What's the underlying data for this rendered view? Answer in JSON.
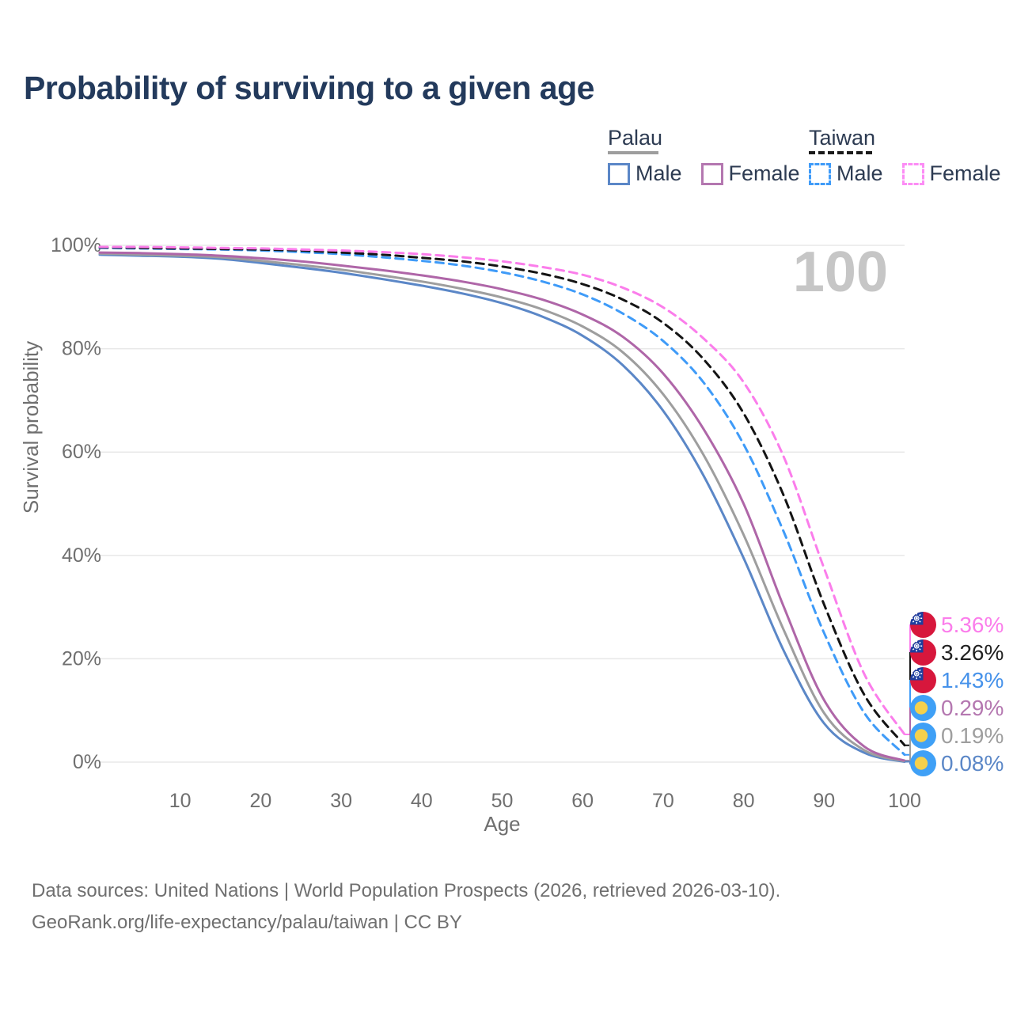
{
  "title": "Probability of surviving to a given age",
  "legend": {
    "groups": [
      {
        "label": "Palau",
        "line_style": "solid",
        "line_color": "#9e9e9e",
        "items": [
          {
            "label": "Male",
            "box_color": "#5b87c7",
            "box_style": "solid"
          },
          {
            "label": "Female",
            "box_color": "#b477b0",
            "box_style": "solid"
          }
        ]
      },
      {
        "label": "Taiwan",
        "line_style": "dashed",
        "line_color": "#1a1a1a",
        "items": [
          {
            "label": "Male",
            "box_color": "#3f9bf8",
            "box_style": "dashed"
          },
          {
            "label": "Female",
            "box_color": "#fc8df5",
            "box_style": "dashed"
          }
        ]
      }
    ]
  },
  "watermark": "100",
  "axes": {
    "x_label": "Age",
    "y_label": "Survival probability",
    "x_ticks": [
      10,
      20,
      30,
      40,
      50,
      60,
      70,
      80,
      90,
      100
    ],
    "y_ticks": [
      "0%",
      "20%",
      "40%",
      "60%",
      "80%",
      "100%"
    ],
    "x_range": [
      0,
      100
    ],
    "y_range": [
      0,
      100
    ],
    "grid": "horizontal-only"
  },
  "chart_data": {
    "type": "line",
    "x": [
      0,
      5,
      10,
      15,
      20,
      25,
      30,
      35,
      40,
      45,
      50,
      55,
      60,
      65,
      70,
      75,
      80,
      85,
      90,
      95,
      100
    ],
    "series": [
      {
        "key": "palau_male",
        "country": "Palau",
        "sex": "Male",
        "color": "#5b87c7",
        "dash": false,
        "values": [
          98.2,
          98.0,
          97.8,
          97.4,
          96.6,
          95.7,
          94.7,
          93.5,
          92.2,
          90.7,
          88.8,
          86.2,
          82.5,
          76.8,
          68.0,
          55.5,
          39.5,
          21.5,
          7.5,
          1.8,
          0.08
        ]
      },
      {
        "key": "palau_total",
        "country": "Palau",
        "sex": "Both",
        "color": "#9e9e9e",
        "dash": false,
        "values": [
          98.4,
          98.2,
          98.0,
          97.7,
          97.0,
          96.2,
          95.3,
          94.2,
          93.0,
          91.6,
          89.9,
          87.6,
          84.3,
          79.3,
          71.2,
          59.5,
          44.0,
          25.5,
          9.5,
          2.3,
          0.19
        ]
      },
      {
        "key": "palau_female",
        "country": "Palau",
        "sex": "Female",
        "color": "#af66a8",
        "dash": false,
        "values": [
          98.6,
          98.5,
          98.3,
          98.0,
          97.5,
          96.9,
          96.1,
          95.2,
          94.2,
          93.0,
          91.5,
          89.5,
          86.6,
          82.3,
          75.2,
          64.5,
          50.0,
          30.0,
          12.0,
          3.0,
          0.29
        ]
      },
      {
        "key": "taiwan_male",
        "country": "Taiwan",
        "sex": "Male",
        "color": "#3f9bf8",
        "dash": true,
        "values": [
          99.5,
          99.4,
          99.3,
          99.2,
          99.0,
          98.7,
          98.3,
          97.7,
          97.0,
          96.1,
          94.8,
          93.0,
          90.5,
          86.8,
          81.5,
          73.5,
          61.5,
          44.5,
          25.0,
          9.5,
          1.43
        ]
      },
      {
        "key": "taiwan_total",
        "country": "Taiwan",
        "sex": "Both",
        "color": "#141414",
        "dash": true,
        "values": [
          99.6,
          99.5,
          99.4,
          99.3,
          99.2,
          99.0,
          98.6,
          98.2,
          97.6,
          96.9,
          95.9,
          94.5,
          92.5,
          89.5,
          85.0,
          78.0,
          67.5,
          51.5,
          30.5,
          13.0,
          3.26
        ]
      },
      {
        "key": "taiwan_female",
        "country": "Taiwan",
        "sex": "Female",
        "color": "#fb7deb",
        "dash": true,
        "values": [
          99.7,
          99.7,
          99.6,
          99.5,
          99.4,
          99.2,
          99.0,
          98.7,
          98.3,
          97.7,
          96.9,
          95.8,
          94.3,
          91.8,
          88.0,
          82.0,
          73.5,
          59.0,
          37.5,
          17.0,
          5.36
        ]
      }
    ],
    "title": "Probability of surviving to a given age",
    "xlabel": "Age",
    "ylabel": "Survival probability",
    "ylim": [
      0,
      100
    ],
    "legend_position": "top-right"
  },
  "end_labels": [
    {
      "series": "taiwan_female",
      "value": "5.36%",
      "color": "#fb7deb",
      "flag": "taiwan"
    },
    {
      "series": "taiwan_total",
      "value": "3.26%",
      "color": "#212121",
      "flag": "taiwan"
    },
    {
      "series": "taiwan_male",
      "value": "1.43%",
      "color": "#4692ea",
      "flag": "taiwan"
    },
    {
      "series": "palau_female",
      "value": "0.29%",
      "color": "#b477b0",
      "flag": "palau"
    },
    {
      "series": "palau_total",
      "value": "0.19%",
      "color": "#9e9e9e",
      "flag": "palau"
    },
    {
      "series": "palau_male",
      "value": "0.08%",
      "color": "#5b87c7",
      "flag": "palau"
    }
  ],
  "footer": {
    "line1": "Data sources: United Nations | World Population Prospects (2026, retrieved 2026-03-10).",
    "line2": "GeoRank.org/life-expectancy/palau/taiwan | CC BY"
  }
}
